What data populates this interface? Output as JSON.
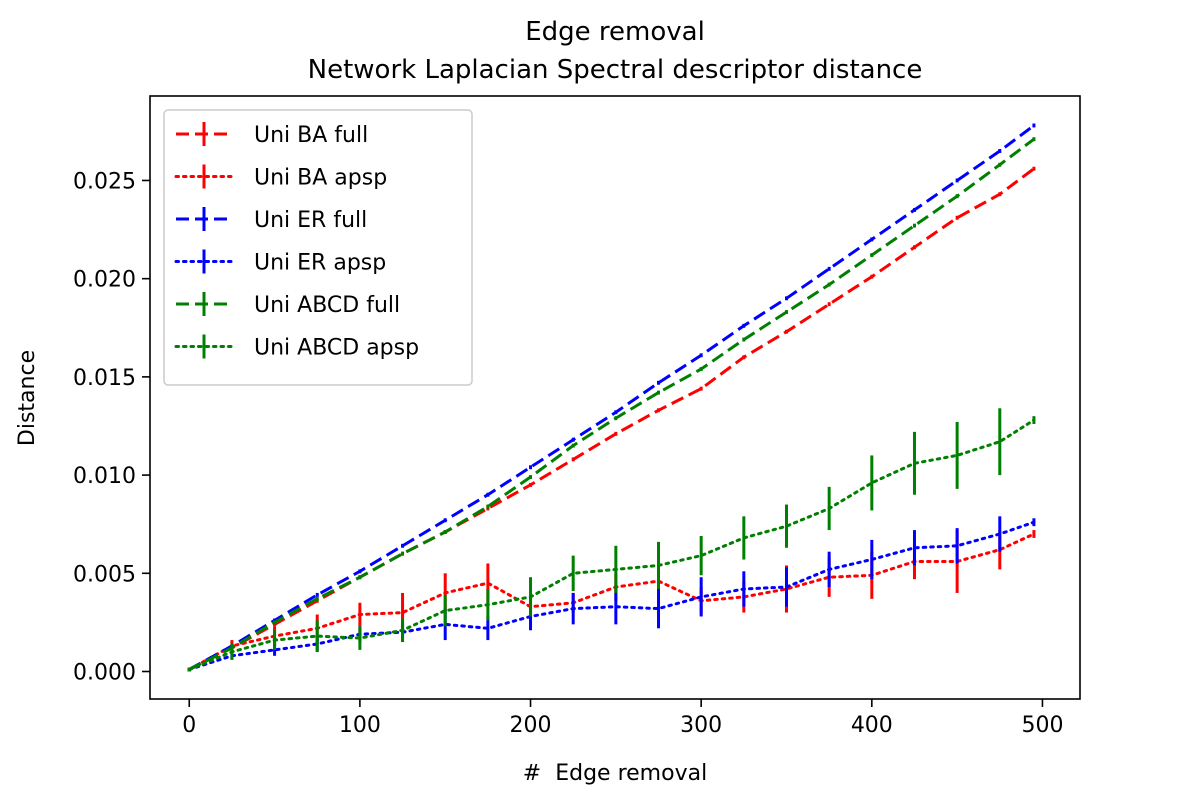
{
  "chart_data": {
    "type": "line",
    "title": "Edge removal",
    "subtitle": "Network Laplacian Spectral descriptor distance",
    "xlabel": "#  Edge removal",
    "ylabel": "Distance",
    "xlim": [
      -23,
      522
    ],
    "ylim": [
      -0.0014,
      0.0293
    ],
    "xticks": [
      0,
      100,
      200,
      300,
      400,
      500
    ],
    "xtick_labels": [
      "0",
      "100",
      "200",
      "300",
      "400",
      "500"
    ],
    "yticks": [
      0.0,
      0.005,
      0.01,
      0.015,
      0.02,
      0.025
    ],
    "ytick_labels": [
      "0.000",
      "0.005",
      "0.010",
      "0.015",
      "0.020",
      "0.025"
    ],
    "grid": false,
    "legend_position": "top-left",
    "x": [
      0,
      25,
      50,
      75,
      100,
      125,
      150,
      175,
      200,
      225,
      250,
      275,
      300,
      325,
      350,
      375,
      400,
      425,
      450,
      475,
      495
    ],
    "series": [
      {
        "name": "Uni BA full",
        "color": "#ff0000",
        "style": "dashed",
        "values": [
          0.0001,
          0.0012,
          0.0024,
          0.0036,
          0.0048,
          0.006,
          0.0071,
          0.0083,
          0.0095,
          0.0108,
          0.0121,
          0.0133,
          0.0144,
          0.016,
          0.0173,
          0.0187,
          0.0201,
          0.0216,
          0.0231,
          0.0243,
          0.0256
        ],
        "errors": [
          0.0001,
          0.0001,
          0.0001,
          0.0001,
          0.0001,
          0.0001,
          0.0001,
          0.0001,
          0.0001,
          0.0001,
          0.0001,
          0.0001,
          0.0001,
          0.0001,
          0.0001,
          0.0001,
          0.0001,
          0.0001,
          0.0001,
          0.0001,
          0.0001
        ]
      },
      {
        "name": "Uni BA apsp",
        "color": "#ff0000",
        "style": "dotted",
        "values": [
          0.0001,
          0.0013,
          0.0018,
          0.0022,
          0.0029,
          0.003,
          0.004,
          0.0045,
          0.0033,
          0.0035,
          0.0043,
          0.0046,
          0.0036,
          0.0038,
          0.0042,
          0.0048,
          0.0049,
          0.0056,
          0.0056,
          0.0062,
          0.007
        ],
        "errors": [
          0.0001,
          0.0003,
          0.0005,
          0.0007,
          0.0006,
          0.001,
          0.001,
          0.001,
          0.0006,
          0.0005,
          0.0007,
          0.0008,
          0.0007,
          0.0008,
          0.0012,
          0.001,
          0.0012,
          0.0009,
          0.0016,
          0.001,
          0.0002
        ]
      },
      {
        "name": "Uni ER full",
        "color": "#0000ff",
        "style": "dashed",
        "values": [
          0.0001,
          0.0013,
          0.0026,
          0.0039,
          0.0051,
          0.0064,
          0.0077,
          0.009,
          0.0104,
          0.0118,
          0.0132,
          0.0147,
          0.0161,
          0.0176,
          0.019,
          0.0205,
          0.022,
          0.0235,
          0.025,
          0.0265,
          0.0278
        ],
        "errors": [
          0.0001,
          0.0001,
          0.0001,
          0.0001,
          0.0001,
          0.0001,
          0.0001,
          0.0001,
          0.0001,
          0.0001,
          0.0001,
          0.0001,
          0.0001,
          0.0001,
          0.0001,
          0.0001,
          0.0001,
          0.0001,
          0.0001,
          0.0001,
          0.0001
        ]
      },
      {
        "name": "Uni ER apsp",
        "color": "#0000ff",
        "style": "dotted",
        "values": [
          0.0001,
          0.0008,
          0.0011,
          0.0014,
          0.0019,
          0.002,
          0.0024,
          0.0022,
          0.0028,
          0.0032,
          0.0033,
          0.0032,
          0.0038,
          0.0042,
          0.0043,
          0.0052,
          0.0057,
          0.0063,
          0.0064,
          0.007,
          0.0076
        ],
        "errors": [
          0.0001,
          0.0002,
          0.0003,
          0.0004,
          0.0004,
          0.0005,
          0.0008,
          0.0006,
          0.0007,
          0.0008,
          0.0009,
          0.001,
          0.001,
          0.0009,
          0.001,
          0.0009,
          0.001,
          0.0009,
          0.0009,
          0.0009,
          0.0002
        ]
      },
      {
        "name": "Uni ABCD full",
        "color": "#008000",
        "style": "dashed",
        "values": [
          0.0001,
          0.0012,
          0.0025,
          0.0037,
          0.0048,
          0.006,
          0.0071,
          0.0084,
          0.0099,
          0.0115,
          0.0129,
          0.0142,
          0.0154,
          0.0169,
          0.0183,
          0.0197,
          0.0212,
          0.0227,
          0.0242,
          0.0258,
          0.0271
        ],
        "errors": [
          0.0001,
          0.0001,
          0.0001,
          0.0001,
          0.0001,
          0.0001,
          0.0001,
          0.0001,
          0.0001,
          0.0001,
          0.0001,
          0.0001,
          0.0001,
          0.0001,
          0.0001,
          0.0001,
          0.0001,
          0.0001,
          0.0001,
          0.0001,
          0.0001
        ]
      },
      {
        "name": "Uni ABCD apsp",
        "color": "#008000",
        "style": "dotted",
        "values": [
          0.0001,
          0.001,
          0.0016,
          0.0018,
          0.0017,
          0.0021,
          0.0031,
          0.0034,
          0.0038,
          0.005,
          0.0052,
          0.0054,
          0.0059,
          0.0068,
          0.0074,
          0.0083,
          0.0096,
          0.0106,
          0.011,
          0.0117,
          0.0128
        ],
        "errors": [
          0.0001,
          0.0004,
          0.0005,
          0.0008,
          0.0006,
          0.0006,
          0.0008,
          0.0008,
          0.001,
          0.0009,
          0.0012,
          0.0012,
          0.001,
          0.0011,
          0.0011,
          0.0011,
          0.0014,
          0.0016,
          0.0017,
          0.0017,
          0.0002
        ]
      }
    ]
  }
}
